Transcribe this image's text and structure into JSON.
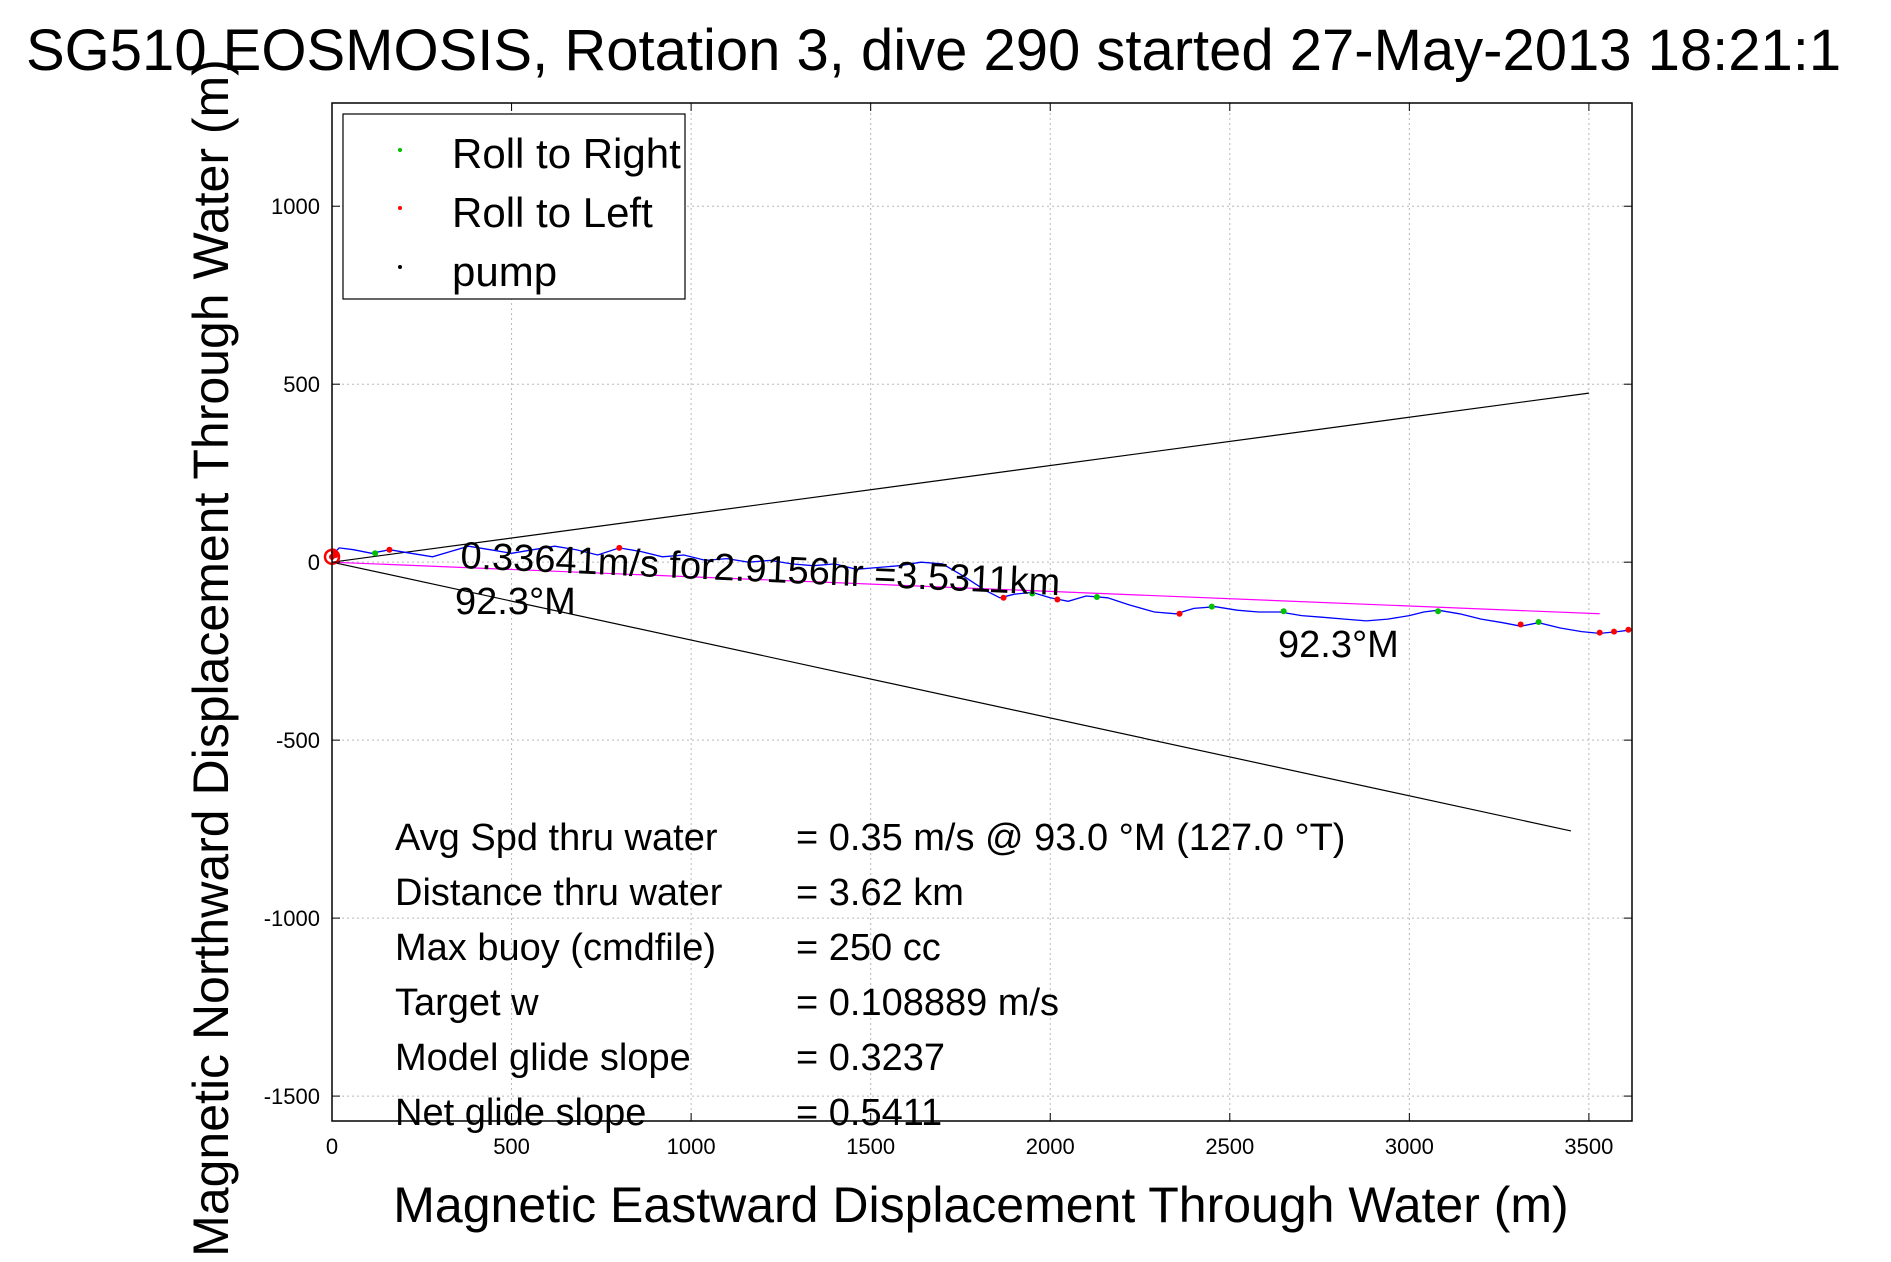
{
  "chart_data": {
    "type": "line",
    "title": "SG510 EOSMOSIS, Rotation 3, dive 290 started 27-May-2013 18:21:1",
    "xlabel": "Magnetic Eastward Displacement Through Water (m)",
    "ylabel": "Magnetic Northward Displacement Through Water (m)",
    "xlim": [
      0,
      3620
    ],
    "ylim": [
      -1570,
      1290
    ],
    "xticks": [
      0,
      500,
      1000,
      1500,
      2000,
      2500,
      3000,
      3500
    ],
    "yticks": [
      1000,
      500,
      0,
      -500,
      -1000,
      -1500
    ],
    "grid": true,
    "legend_position": "top-left",
    "legend": [
      {
        "label": "Roll to Right",
        "color": "#00c000"
      },
      {
        "label": "Roll to Left",
        "color": "#ff0000"
      },
      {
        "label": "pump",
        "color": "#000000"
      }
    ],
    "track": {
      "color": "#0000ff",
      "x": [
        0,
        20,
        60,
        110,
        160,
        220,
        280,
        330,
        380,
        440,
        500,
        560,
        620,
        680,
        740,
        800,
        860,
        920,
        980,
        1040,
        1100,
        1160,
        1220,
        1280,
        1340,
        1400,
        1460,
        1520,
        1580,
        1640,
        1700,
        1760,
        1820,
        1860,
        1900,
        1950,
        2000,
        2050,
        2100,
        2160,
        2220,
        2290,
        2350,
        2400,
        2460,
        2520,
        2580,
        2640,
        2700,
        2760,
        2820,
        2880,
        2940,
        3000,
        3040,
        3080,
        3140,
        3200,
        3260,
        3310,
        3360,
        3420,
        3480,
        3530,
        3580,
        3620
      ],
      "y": [
        20,
        40,
        35,
        25,
        35,
        25,
        15,
        30,
        45,
        35,
        25,
        35,
        45,
        35,
        20,
        40,
        30,
        15,
        20,
        5,
        10,
        0,
        5,
        -5,
        -10,
        -5,
        -20,
        -15,
        -10,
        0,
        -5,
        -40,
        -80,
        -100,
        -90,
        -85,
        -100,
        -110,
        -95,
        -100,
        -120,
        -140,
        -145,
        -130,
        -125,
        -135,
        -140,
        -140,
        -150,
        -155,
        -160,
        -165,
        -160,
        -150,
        -140,
        -135,
        -145,
        -160,
        -170,
        -180,
        -170,
        -185,
        -195,
        -200,
        -195,
        -190
      ]
    },
    "fit_line": {
      "color": "#ff00ff",
      "x": [
        0,
        3530
      ],
      "y": [
        0,
        -145
      ]
    },
    "envelope_lines": [
      {
        "color": "#000000",
        "x": [
          0,
          3500
        ],
        "y": [
          0,
          475
        ]
      },
      {
        "color": "#000000",
        "x": [
          0,
          3450
        ],
        "y": [
          0,
          -755
        ]
      }
    ],
    "markers": [
      {
        "series": "Roll to Right",
        "color": "#00c000",
        "x": [
          120,
          1950,
          2130,
          2450,
          2650,
          3080,
          3360
        ],
        "y": [
          25,
          -88,
          -98,
          -125,
          -138,
          -138,
          -168
        ]
      },
      {
        "series": "Roll to Left",
        "color": "#ff0000",
        "x": [
          0,
          5,
          10,
          160,
          800,
          1870,
          2020,
          2360,
          3310,
          3530,
          3570,
          3610
        ],
        "y": [
          15,
          30,
          20,
          35,
          40,
          -100,
          -105,
          -145,
          -175,
          -198,
          -195,
          -190
        ]
      }
    ],
    "annotations": [
      {
        "text": "0.33641m/s for2.9156hr =3.5311km",
        "x": 360,
        "y": 15
      },
      {
        "text": "92.3°M",
        "x": 350,
        "y": -130
      },
      {
        "text": "92.3°M",
        "x": 2640,
        "y": -250
      }
    ]
  },
  "stats": [
    {
      "label": "Avg Spd thru water",
      "value": "=  0.35 m/s @  93.0 °M (127.0 °T)"
    },
    {
      "label": "Distance thru water",
      "value": "=  3.62 km"
    },
    {
      "label": "Max buoy (cmdfile)",
      "value": "= 250 cc"
    },
    {
      "label": "Target w",
      "value": "= 0.108889 m/s"
    },
    {
      "label": "Model glide slope",
      "value": "= 0.3237"
    },
    {
      "label": "Net glide slope",
      "value": "= 0.5411"
    }
  ]
}
